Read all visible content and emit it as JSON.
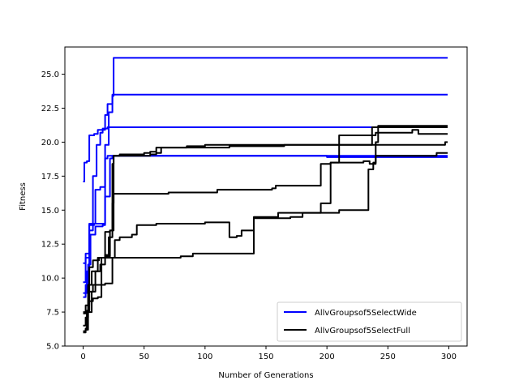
{
  "chart_data": {
    "type": "line",
    "title": "",
    "xlabel": "Number of Generations",
    "ylabel": "Fitness",
    "xlim": [
      -15,
      315
    ],
    "ylim": [
      5.0,
      27.0
    ],
    "xticks": [
      0,
      50,
      100,
      150,
      200,
      250,
      300
    ],
    "xtick_labels": [
      "0",
      "50",
      "100",
      "150",
      "200",
      "250",
      "300"
    ],
    "yticks": [
      5.0,
      7.5,
      10.0,
      12.5,
      15.0,
      17.5,
      20.0,
      22.5,
      25.0
    ],
    "ytick_labels": [
      "5.0",
      "7.5",
      "10.0",
      "12.5",
      "15.0",
      "17.5",
      "20.0",
      "22.5",
      "25.0"
    ],
    "grid": false,
    "legend_position": "lower-right",
    "legend": [
      {
        "label": "AllvGroupsof5SelectWide",
        "color": "#0000ff"
      },
      {
        "label": "AllvGroupsof5SelectFull",
        "color": "#000000"
      }
    ],
    "series": [
      {
        "group": "AllvGroupsof5SelectWide",
        "color": "#0000ff",
        "points": [
          [
            0,
            9.7
          ],
          [
            2,
            11.5
          ],
          [
            5,
            14.0
          ],
          [
            8,
            17.5
          ],
          [
            11,
            19.8
          ],
          [
            14,
            20.7
          ],
          [
            16,
            21.0
          ],
          [
            18,
            22.0
          ],
          [
            20,
            22.8
          ],
          [
            24,
            23.4
          ],
          [
            25,
            26.2
          ],
          [
            299,
            26.2
          ]
        ]
      },
      {
        "group": "AllvGroupsof5SelectWide",
        "color": "#0000ff",
        "points": [
          [
            0,
            11.1
          ],
          [
            2,
            11.8
          ],
          [
            5,
            13.9
          ],
          [
            9,
            14.0
          ],
          [
            15,
            14.0
          ],
          [
            18,
            19.8
          ],
          [
            21,
            22.2
          ],
          [
            24,
            23.5
          ],
          [
            299,
            23.5
          ]
        ]
      },
      {
        "group": "AllvGroupsof5SelectWide",
        "color": "#0000ff",
        "points": [
          [
            0,
            17.1
          ],
          [
            1,
            18.5
          ],
          [
            3,
            18.6
          ],
          [
            5,
            20.5
          ],
          [
            9,
            20.6
          ],
          [
            12,
            20.9
          ],
          [
            18,
            21.0
          ],
          [
            20,
            21.1
          ],
          [
            299,
            21.1
          ]
        ]
      },
      {
        "group": "AllvGroupsof5SelectWide",
        "color": "#0000ff",
        "points": [
          [
            0,
            8.9
          ],
          [
            3,
            10.5
          ],
          [
            5,
            13.5
          ],
          [
            8,
            14.0
          ],
          [
            10,
            16.5
          ],
          [
            14,
            16.7
          ],
          [
            18,
            18.8
          ],
          [
            20,
            19.0
          ],
          [
            299,
            19.0
          ]
        ]
      },
      {
        "group": "AllvGroupsof5SelectWide",
        "color": "#0000ff",
        "points": [
          [
            0,
            8.6
          ],
          [
            2,
            9.5
          ],
          [
            4,
            11.0
          ],
          [
            6,
            13.2
          ],
          [
            10,
            13.8
          ],
          [
            16,
            13.9
          ],
          [
            18,
            16.0
          ],
          [
            22,
            18.8
          ],
          [
            24,
            19.0
          ],
          [
            60,
            19.0
          ],
          [
            100,
            19.0
          ],
          [
            200,
            18.9
          ],
          [
            299,
            18.9
          ]
        ]
      },
      {
        "group": "AllvGroupsof5SelectFull",
        "color": "#000000",
        "points": [
          [
            0,
            6.5
          ],
          [
            2,
            7.1
          ],
          [
            4,
            9.5
          ],
          [
            7,
            10.5
          ],
          [
            12,
            11.5
          ],
          [
            18,
            11.7
          ],
          [
            21,
            13.0
          ],
          [
            24,
            18.4
          ],
          [
            25,
            19.0
          ],
          [
            55,
            19.1
          ],
          [
            60,
            19.2
          ],
          [
            64,
            19.6
          ],
          [
            120,
            19.7
          ],
          [
            165,
            19.8
          ],
          [
            235,
            19.8
          ],
          [
            237,
            21.1
          ],
          [
            299,
            21.1
          ]
        ]
      },
      {
        "group": "AllvGroupsof5SelectFull",
        "color": "#000000",
        "points": [
          [
            0,
            7.4
          ],
          [
            3,
            7.6
          ],
          [
            5,
            9.0
          ],
          [
            8,
            9.5
          ],
          [
            10,
            10.5
          ],
          [
            14,
            11.0
          ],
          [
            18,
            11.6
          ],
          [
            22,
            13.5
          ],
          [
            25,
            19.0
          ],
          [
            30,
            19.1
          ],
          [
            50,
            19.2
          ],
          [
            55,
            19.3
          ],
          [
            60,
            19.6
          ],
          [
            85,
            19.7
          ],
          [
            100,
            19.8
          ],
          [
            240,
            19.8
          ],
          [
            295,
            19.8
          ],
          [
            297,
            20.0
          ],
          [
            299,
            20.0
          ]
        ]
      },
      {
        "group": "AllvGroupsof5SelectFull",
        "color": "#000000",
        "points": [
          [
            0,
            6.1
          ],
          [
            2,
            6.3
          ],
          [
            3,
            7.6
          ],
          [
            5,
            8.3
          ],
          [
            8,
            8.5
          ],
          [
            12,
            8.6
          ],
          [
            15,
            11.5
          ],
          [
            18,
            13.4
          ],
          [
            22,
            13.5
          ],
          [
            24,
            15.5
          ],
          [
            25,
            16.2
          ],
          [
            70,
            16.3
          ],
          [
            105,
            16.3
          ],
          [
            110,
            16.5
          ],
          [
            155,
            16.6
          ],
          [
            158,
            16.8
          ],
          [
            190,
            16.8
          ],
          [
            195,
            18.4
          ],
          [
            203,
            18.5
          ],
          [
            210,
            20.5
          ],
          [
            240,
            20.7
          ],
          [
            270,
            20.9
          ],
          [
            275,
            20.6
          ],
          [
            299,
            20.6
          ]
        ]
      },
      {
        "group": "AllvGroupsof5SelectFull",
        "color": "#000000",
        "points": [
          [
            0,
            6.0
          ],
          [
            2,
            6.2
          ],
          [
            4,
            7.5
          ],
          [
            7,
            9.0
          ],
          [
            10,
            9.5
          ],
          [
            18,
            9.6
          ],
          [
            24,
            11.5
          ],
          [
            26,
            12.8
          ],
          [
            30,
            13.0
          ],
          [
            40,
            13.2
          ],
          [
            44,
            13.9
          ],
          [
            60,
            14.0
          ],
          [
            100,
            14.1
          ],
          [
            118,
            14.1
          ],
          [
            120,
            13.0
          ],
          [
            126,
            13.1
          ],
          [
            130,
            13.5
          ],
          [
            140,
            14.4
          ],
          [
            170,
            14.5
          ],
          [
            180,
            14.8
          ],
          [
            195,
            15.5
          ],
          [
            203,
            18.5
          ],
          [
            230,
            18.6
          ],
          [
            235,
            18.4
          ],
          [
            240,
            19.0
          ],
          [
            290,
            19.2
          ],
          [
            299,
            19.2
          ]
        ]
      },
      {
        "group": "AllvGroupsof5SelectFull",
        "color": "#000000",
        "points": [
          [
            0,
            7.5
          ],
          [
            2,
            8.0
          ],
          [
            5,
            10.8
          ],
          [
            8,
            11.3
          ],
          [
            13,
            11.5
          ],
          [
            20,
            11.5
          ],
          [
            25,
            11.5
          ],
          [
            70,
            11.5
          ],
          [
            80,
            11.6
          ],
          [
            90,
            11.8
          ],
          [
            140,
            14.5
          ],
          [
            160,
            14.8
          ],
          [
            190,
            14.8
          ],
          [
            210,
            15.0
          ],
          [
            232,
            15.0
          ],
          [
            234,
            18.0
          ],
          [
            238,
            18.5
          ],
          [
            240,
            20.0
          ],
          [
            242,
            21.2
          ],
          [
            299,
            21.2
          ]
        ]
      }
    ]
  }
}
